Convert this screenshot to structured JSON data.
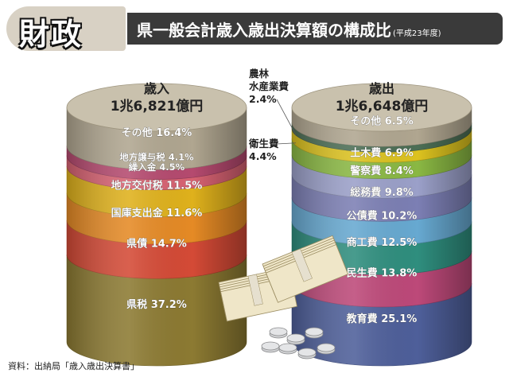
{
  "header": {
    "badge": "財政",
    "title": "県一般会計歳入歳出決算額の構成比",
    "subtitle": "(平成23年度)"
  },
  "chart_data": [
    {
      "type": "stacked-bar",
      "title": "歳入",
      "total": "1兆6,821億円",
      "segments": [
        {
          "name": "県税",
          "value": 37.2,
          "label": "県税 37.2%",
          "color": "#8c7a32"
        },
        {
          "name": "県債",
          "value": 14.7,
          "label": "県債 14.7%",
          "color": "#d44a36"
        },
        {
          "name": "国庫支出金",
          "value": 11.6,
          "label": "国庫支出金 11.6%",
          "color": "#e58a25"
        },
        {
          "name": "地方交付税",
          "value": 11.5,
          "label": "地方交付税 11.5%",
          "color": "#dfb11c"
        },
        {
          "name": "繰入金",
          "value": 4.5,
          "label": "繰入金 4.5%",
          "color": "#d76272"
        },
        {
          "name": "地方譲与税",
          "value": 4.1,
          "label": "地方譲与税 4.1%",
          "color": "#b54a6f"
        },
        {
          "name": "その他",
          "value": 16.4,
          "label": "その他 16.4%",
          "color": "#b0a690"
        }
      ]
    },
    {
      "type": "stacked-bar",
      "title": "歳出",
      "total": "1兆6,648億円",
      "segments": [
        {
          "name": "教育費",
          "value": 25.1,
          "label": "教育費 25.1%",
          "color": "#4e5f9a"
        },
        {
          "name": "民生費",
          "value": 13.8,
          "label": "民生費 13.8%",
          "color": "#bd4979"
        },
        {
          "name": "商工費",
          "value": 12.5,
          "label": "商工費 12.5%",
          "color": "#2f8e7e"
        },
        {
          "name": "公債費",
          "value": 10.2,
          "label": "公債費 10.2%",
          "color": "#67a9d1"
        },
        {
          "name": "総務費",
          "value": 9.8,
          "label": "総務費 9.8%",
          "color": "#7c7fb4"
        },
        {
          "name": "警察費",
          "value": 8.4,
          "label": "警察費 8.4%",
          "color": "#9ba0c9"
        },
        {
          "name": "土木費",
          "value": 6.9,
          "label": "土木費 6.9%",
          "color": "#8ab843"
        },
        {
          "name": "衛生費",
          "value": 4.4,
          "label": "",
          "color": "#dcc21f"
        },
        {
          "name": "農林水産業費",
          "value": 2.4,
          "label": "",
          "color": "#4c6e55"
        },
        {
          "name": "その他",
          "value": 6.5,
          "label": "その他 6.5%",
          "color": "#b0a690"
        }
      ],
      "callouts": [
        {
          "lines": [
            "農林",
            "水産業費",
            "2.4%"
          ],
          "target": "農林水産業費"
        },
        {
          "lines": [
            "衛生費",
            "4.4%"
          ],
          "target": "衛生費"
        }
      ]
    }
  ],
  "source": "資料：出納局「歳入歳出決算書」"
}
